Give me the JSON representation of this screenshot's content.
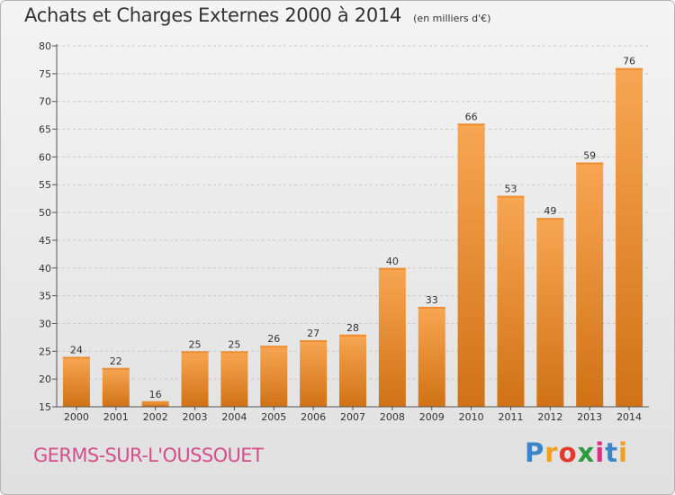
{
  "header": {
    "title": "Achats et Charges Externes 2000 à 2014",
    "subtitle": "(en milliers d'€)"
  },
  "footer": {
    "place": "GERMS-SUR-L'OUSSOUET",
    "logo_letters": [
      "P",
      "r",
      "o",
      "x",
      "i",
      "t",
      "i"
    ],
    "logo_colors": [
      "#3b86c8",
      "#f0a021",
      "#e23b2b",
      "#2e9a3e",
      "#d6327f",
      "#3b86c8",
      "#f0a021"
    ]
  },
  "colors": {
    "bar_light": "#f8a653",
    "bar_dark": "#d07215",
    "axis": "#555555",
    "grid": "#c8c8c8"
  },
  "chart_data": {
    "type": "bar",
    "title": "Achats et Charges Externes 2000 à 2014",
    "subtitle": "(en milliers d'€)",
    "categories": [
      "2000",
      "2001",
      "2002",
      "2003",
      "2004",
      "2005",
      "2006",
      "2007",
      "2008",
      "2009",
      "2010",
      "2011",
      "2012",
      "2013",
      "2014"
    ],
    "values": [
      24,
      22,
      16,
      25,
      25,
      26,
      27,
      28,
      40,
      33,
      66,
      53,
      49,
      59,
      76
    ],
    "ylim": [
      15,
      80
    ],
    "yticks": [
      15,
      20,
      25,
      30,
      35,
      40,
      45,
      50,
      55,
      60,
      65,
      70,
      75,
      80
    ],
    "grid": true,
    "data_labels": true
  }
}
